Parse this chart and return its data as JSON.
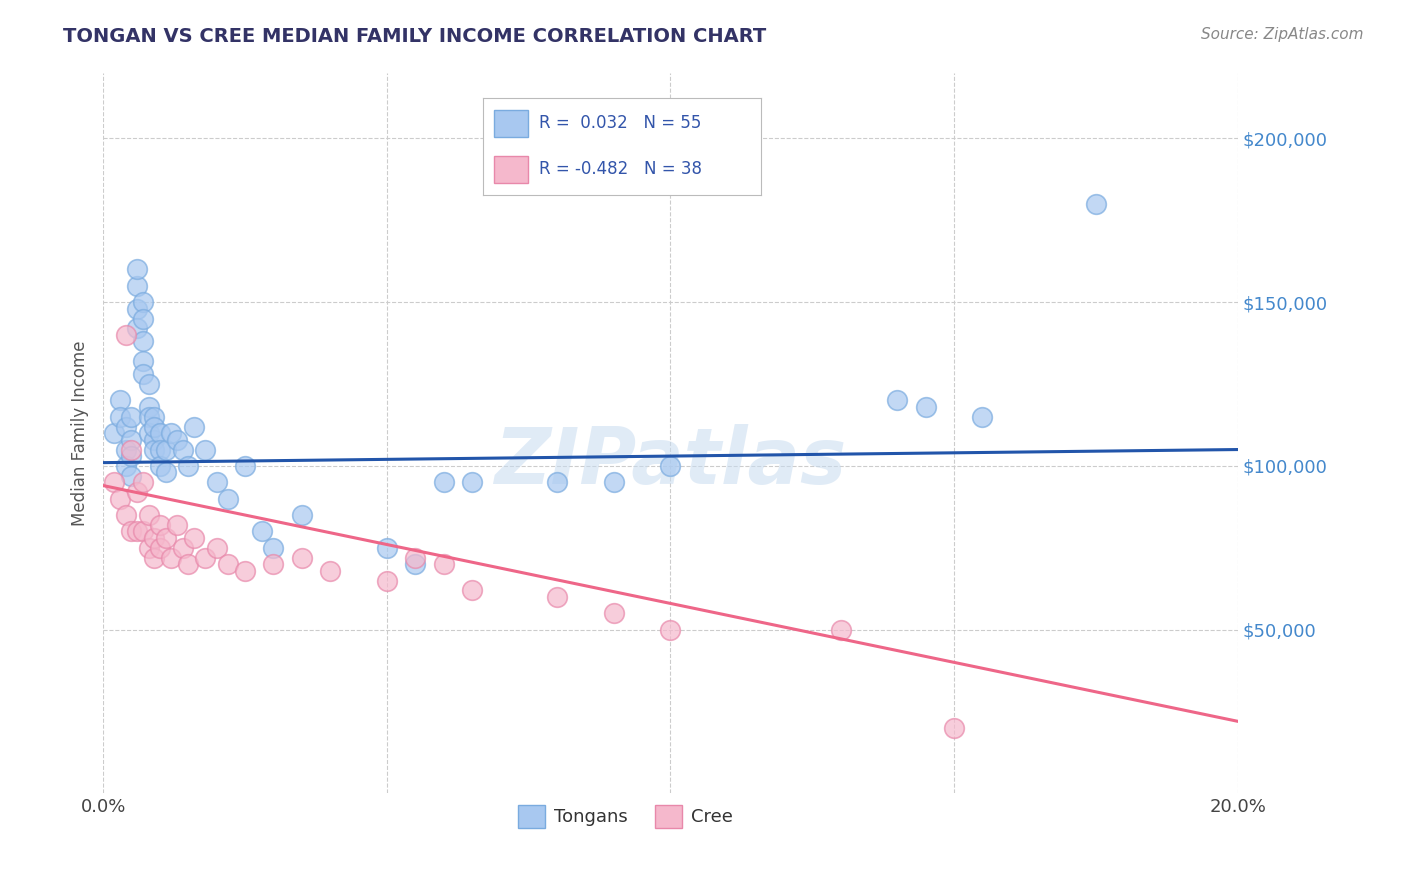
{
  "title": "TONGAN VS CREE MEDIAN FAMILY INCOME CORRELATION CHART",
  "source": "Source: ZipAtlas.com",
  "ylabel": "Median Family Income",
  "xlim": [
    0.0,
    0.2
  ],
  "ylim": [
    0,
    220000
  ],
  "xtick_values": [
    0.0,
    0.05,
    0.1,
    0.15,
    0.2
  ],
  "xtick_labels": [
    "0.0%",
    "",
    "",
    "",
    "20.0%"
  ],
  "ytick_values": [
    50000,
    100000,
    150000,
    200000
  ],
  "ytick_labels": [
    "$50,000",
    "$100,000",
    "$150,000",
    "$200,000"
  ],
  "background_color": "#ffffff",
  "grid_color": "#cccccc",
  "tongan_color": "#a8c8f0",
  "tongan_edge_color": "#7aabdf",
  "cree_color": "#f5b8cc",
  "cree_edge_color": "#e888aa",
  "tongan_line_color": "#2255aa",
  "cree_line_color": "#ee6688",
  "tongan_x": [
    0.002,
    0.003,
    0.003,
    0.004,
    0.004,
    0.004,
    0.005,
    0.005,
    0.005,
    0.005,
    0.006,
    0.006,
    0.006,
    0.006,
    0.007,
    0.007,
    0.007,
    0.007,
    0.007,
    0.008,
    0.008,
    0.008,
    0.008,
    0.009,
    0.009,
    0.009,
    0.009,
    0.01,
    0.01,
    0.01,
    0.011,
    0.011,
    0.012,
    0.013,
    0.014,
    0.015,
    0.016,
    0.018,
    0.02,
    0.022,
    0.025,
    0.028,
    0.03,
    0.035,
    0.06,
    0.065,
    0.1,
    0.14,
    0.145,
    0.155,
    0.05,
    0.055,
    0.08,
    0.09,
    0.175
  ],
  "tongan_y": [
    110000,
    120000,
    115000,
    105000,
    100000,
    112000,
    108000,
    103000,
    97000,
    115000,
    155000,
    148000,
    160000,
    142000,
    150000,
    145000,
    138000,
    132000,
    128000,
    125000,
    118000,
    115000,
    110000,
    108000,
    115000,
    112000,
    105000,
    110000,
    105000,
    100000,
    105000,
    98000,
    110000,
    108000,
    105000,
    100000,
    112000,
    105000,
    95000,
    90000,
    100000,
    80000,
    75000,
    85000,
    95000,
    95000,
    100000,
    120000,
    118000,
    115000,
    75000,
    70000,
    95000,
    95000,
    180000
  ],
  "cree_x": [
    0.002,
    0.003,
    0.004,
    0.004,
    0.005,
    0.005,
    0.006,
    0.006,
    0.007,
    0.007,
    0.008,
    0.008,
    0.009,
    0.009,
    0.01,
    0.01,
    0.011,
    0.012,
    0.013,
    0.014,
    0.015,
    0.016,
    0.018,
    0.02,
    0.022,
    0.025,
    0.03,
    0.035,
    0.04,
    0.05,
    0.055,
    0.06,
    0.065,
    0.08,
    0.09,
    0.1,
    0.13,
    0.15
  ],
  "cree_y": [
    95000,
    90000,
    140000,
    85000,
    105000,
    80000,
    92000,
    80000,
    95000,
    80000,
    85000,
    75000,
    78000,
    72000,
    82000,
    75000,
    78000,
    72000,
    82000,
    75000,
    70000,
    78000,
    72000,
    75000,
    70000,
    68000,
    70000,
    72000,
    68000,
    65000,
    72000,
    70000,
    62000,
    60000,
    55000,
    50000,
    50000,
    20000
  ],
  "tongan_trend_x": [
    0.0,
    0.2
  ],
  "tongan_trend_y": [
    101000,
    105000
  ],
  "cree_trend_x": [
    0.0,
    0.2
  ],
  "cree_trend_y": [
    94000,
    22000
  ]
}
